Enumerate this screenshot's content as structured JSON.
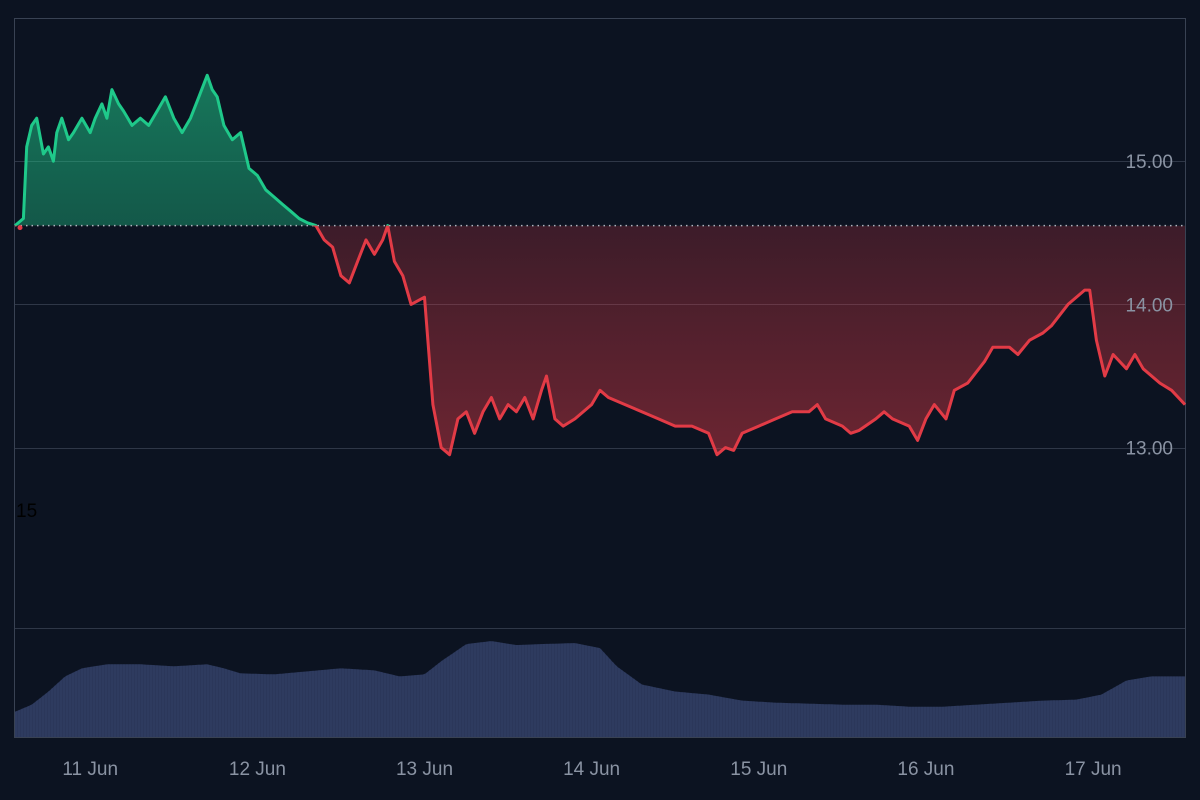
{
  "chart_data": {
    "type": "area",
    "title": "",
    "xlabel": "",
    "ylabel": "",
    "x_ticks": [
      "11 Jun",
      "12 Jun",
      "13 Jun",
      "14 Jun",
      "15 Jun",
      "16 Jun",
      "17 Jun"
    ],
    "y_ticks": [
      "15.00",
      "14.00",
      "13.00"
    ],
    "y_range": [
      11.74,
      16.0
    ],
    "x_range_days": [
      10.55,
      17.55
    ],
    "baseline_value": 14.55,
    "side_label": "15",
    "grid": "horizontal",
    "price_series": {
      "name": "",
      "points": [
        [
          10.55,
          14.55
        ],
        [
          10.6,
          14.6
        ],
        [
          10.62,
          15.1
        ],
        [
          10.65,
          15.25
        ],
        [
          10.68,
          15.3
        ],
        [
          10.72,
          15.05
        ],
        [
          10.75,
          15.1
        ],
        [
          10.78,
          15.0
        ],
        [
          10.8,
          15.2
        ],
        [
          10.83,
          15.3
        ],
        [
          10.87,
          15.15
        ],
        [
          10.9,
          15.2
        ],
        [
          10.95,
          15.3
        ],
        [
          11.0,
          15.2
        ],
        [
          11.03,
          15.3
        ],
        [
          11.07,
          15.4
        ],
        [
          11.1,
          15.3
        ],
        [
          11.13,
          15.5
        ],
        [
          11.17,
          15.4
        ],
        [
          11.2,
          15.35
        ],
        [
          11.25,
          15.25
        ],
        [
          11.3,
          15.3
        ],
        [
          11.35,
          15.25
        ],
        [
          11.4,
          15.35
        ],
        [
          11.45,
          15.45
        ],
        [
          11.5,
          15.3
        ],
        [
          11.55,
          15.2
        ],
        [
          11.6,
          15.3
        ],
        [
          11.65,
          15.45
        ],
        [
          11.7,
          15.6
        ],
        [
          11.73,
          15.5
        ],
        [
          11.76,
          15.45
        ],
        [
          11.8,
          15.25
        ],
        [
          11.85,
          15.15
        ],
        [
          11.9,
          15.2
        ],
        [
          11.95,
          14.95
        ],
        [
          12.0,
          14.9
        ],
        [
          12.05,
          14.8
        ],
        [
          12.1,
          14.75
        ],
        [
          12.15,
          14.7
        ],
        [
          12.2,
          14.65
        ],
        [
          12.25,
          14.6
        ],
        [
          12.3,
          14.57
        ],
        [
          12.35,
          14.55
        ],
        [
          12.4,
          14.45
        ],
        [
          12.45,
          14.4
        ],
        [
          12.5,
          14.2
        ],
        [
          12.55,
          14.15
        ],
        [
          12.6,
          14.3
        ],
        [
          12.65,
          14.45
        ],
        [
          12.7,
          14.35
        ],
        [
          12.75,
          14.45
        ],
        [
          12.78,
          14.55
        ],
        [
          12.82,
          14.3
        ],
        [
          12.87,
          14.2
        ],
        [
          12.92,
          14.0
        ],
        [
          13.0,
          14.05
        ],
        [
          13.05,
          13.3
        ],
        [
          13.1,
          13.0
        ],
        [
          13.15,
          12.95
        ],
        [
          13.2,
          13.2
        ],
        [
          13.25,
          13.25
        ],
        [
          13.3,
          13.1
        ],
        [
          13.35,
          13.25
        ],
        [
          13.4,
          13.35
        ],
        [
          13.45,
          13.2
        ],
        [
          13.5,
          13.3
        ],
        [
          13.55,
          13.25
        ],
        [
          13.6,
          13.35
        ],
        [
          13.65,
          13.2
        ],
        [
          13.7,
          13.4
        ],
        [
          13.73,
          13.5
        ],
        [
          13.78,
          13.2
        ],
        [
          13.83,
          13.15
        ],
        [
          13.9,
          13.2
        ],
        [
          14.0,
          13.3
        ],
        [
          14.05,
          13.4
        ],
        [
          14.1,
          13.35
        ],
        [
          14.2,
          13.3
        ],
        [
          14.3,
          13.25
        ],
        [
          14.4,
          13.2
        ],
        [
          14.5,
          13.15
        ],
        [
          14.6,
          13.15
        ],
        [
          14.7,
          13.1
        ],
        [
          14.75,
          12.95
        ],
        [
          14.8,
          13.0
        ],
        [
          14.85,
          12.98
        ],
        [
          14.9,
          13.1
        ],
        [
          15.0,
          13.15
        ],
        [
          15.1,
          13.2
        ],
        [
          15.2,
          13.25
        ],
        [
          15.3,
          13.25
        ],
        [
          15.35,
          13.3
        ],
        [
          15.4,
          13.2
        ],
        [
          15.5,
          13.15
        ],
        [
          15.55,
          13.1
        ],
        [
          15.6,
          13.12
        ],
        [
          15.7,
          13.2
        ],
        [
          15.75,
          13.25
        ],
        [
          15.8,
          13.2
        ],
        [
          15.9,
          13.15
        ],
        [
          15.95,
          13.05
        ],
        [
          16.0,
          13.2
        ],
        [
          16.05,
          13.3
        ],
        [
          16.12,
          13.2
        ],
        [
          16.17,
          13.4
        ],
        [
          16.25,
          13.45
        ],
        [
          16.35,
          13.6
        ],
        [
          16.4,
          13.7
        ],
        [
          16.5,
          13.7
        ],
        [
          16.55,
          13.65
        ],
        [
          16.62,
          13.75
        ],
        [
          16.7,
          13.8
        ],
        [
          16.75,
          13.85
        ],
        [
          16.85,
          14.0
        ],
        [
          16.95,
          14.1
        ],
        [
          16.98,
          14.1
        ],
        [
          17.02,
          13.75
        ],
        [
          17.07,
          13.5
        ],
        [
          17.12,
          13.65
        ],
        [
          17.2,
          13.55
        ],
        [
          17.25,
          13.65
        ],
        [
          17.3,
          13.55
        ],
        [
          17.4,
          13.45
        ],
        [
          17.47,
          13.4
        ],
        [
          17.55,
          13.3
        ]
      ]
    },
    "volume_series": {
      "name": "",
      "points": [
        [
          10.55,
          0.25
        ],
        [
          10.65,
          0.32
        ],
        [
          10.75,
          0.45
        ],
        [
          10.85,
          0.6
        ],
        [
          10.95,
          0.68
        ],
        [
          11.1,
          0.72
        ],
        [
          11.3,
          0.72
        ],
        [
          11.5,
          0.7
        ],
        [
          11.7,
          0.72
        ],
        [
          11.8,
          0.68
        ],
        [
          11.9,
          0.63
        ],
        [
          12.1,
          0.62
        ],
        [
          12.3,
          0.65
        ],
        [
          12.5,
          0.68
        ],
        [
          12.7,
          0.66
        ],
        [
          12.85,
          0.6
        ],
        [
          13.0,
          0.62
        ],
        [
          13.1,
          0.75
        ],
        [
          13.25,
          0.92
        ],
        [
          13.4,
          0.95
        ],
        [
          13.55,
          0.91
        ],
        [
          13.7,
          0.92
        ],
        [
          13.9,
          0.93
        ],
        [
          14.05,
          0.88
        ],
        [
          14.15,
          0.7
        ],
        [
          14.3,
          0.52
        ],
        [
          14.5,
          0.45
        ],
        [
          14.7,
          0.42
        ],
        [
          14.9,
          0.36
        ],
        [
          15.1,
          0.34
        ],
        [
          15.3,
          0.33
        ],
        [
          15.5,
          0.32
        ],
        [
          15.7,
          0.32
        ],
        [
          15.9,
          0.3
        ],
        [
          16.1,
          0.3
        ],
        [
          16.3,
          0.32
        ],
        [
          16.5,
          0.34
        ],
        [
          16.7,
          0.36
        ],
        [
          16.9,
          0.37
        ],
        [
          17.05,
          0.42
        ],
        [
          17.2,
          0.56
        ],
        [
          17.35,
          0.6
        ],
        [
          17.55,
          0.6
        ]
      ]
    },
    "colors": {
      "background": "#0c1321",
      "rise": "#1fc98a",
      "fall": "#e23b46",
      "grid": "#2f3747",
      "frame": "#394253",
      "baseline": "#aeb4bf",
      "tick_text": "#8a93a3",
      "volume_fill": "#2b375a",
      "volume_bar": "#36446b",
      "side_label": "#000000"
    }
  }
}
